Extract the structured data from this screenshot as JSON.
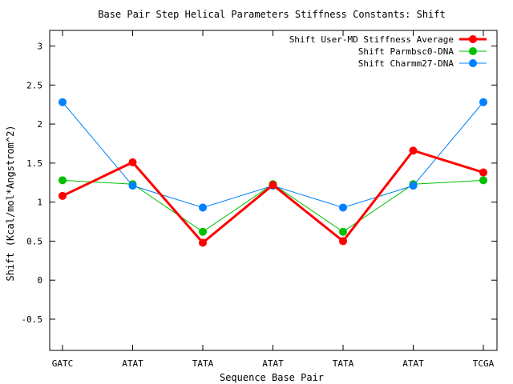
{
  "chart_data": {
    "type": "line",
    "title": "Base Pair Step Helical Parameters Stiffness Constants: Shift",
    "xlabel": "Sequence Base Pair",
    "ylabel": "Shift (Kcal/mol*Angstrom^2)",
    "categories": [
      "GATC",
      "ATAT",
      "TATA",
      "ATAT",
      "TATA",
      "ATAT",
      "TCGA"
    ],
    "ylim": [
      -0.9,
      3.2
    ],
    "yticks": [
      -0.5,
      0,
      0.5,
      1,
      1.5,
      2,
      2.5,
      3
    ],
    "ytick_labels": [
      "-0.5",
      "0",
      "0.5",
      "1",
      "1.5",
      "2",
      "2.5",
      "3"
    ],
    "grid": false,
    "legend_position": "top-right",
    "series": [
      {
        "name": "Shift User-MD Stiffness Average",
        "color": "#ff0000",
        "values": [
          1.08,
          1.51,
          0.48,
          1.22,
          0.5,
          1.66,
          1.38
        ]
      },
      {
        "name": "Shift Parmbsc0-DNA",
        "color": "#00c000",
        "values": [
          1.28,
          1.23,
          0.62,
          1.23,
          0.62,
          1.23,
          1.28
        ]
      },
      {
        "name": "Shift Charmm27-DNA",
        "color": "#0080ff",
        "values": [
          2.28,
          1.21,
          0.93,
          1.21,
          0.93,
          1.21,
          2.28
        ]
      }
    ]
  }
}
